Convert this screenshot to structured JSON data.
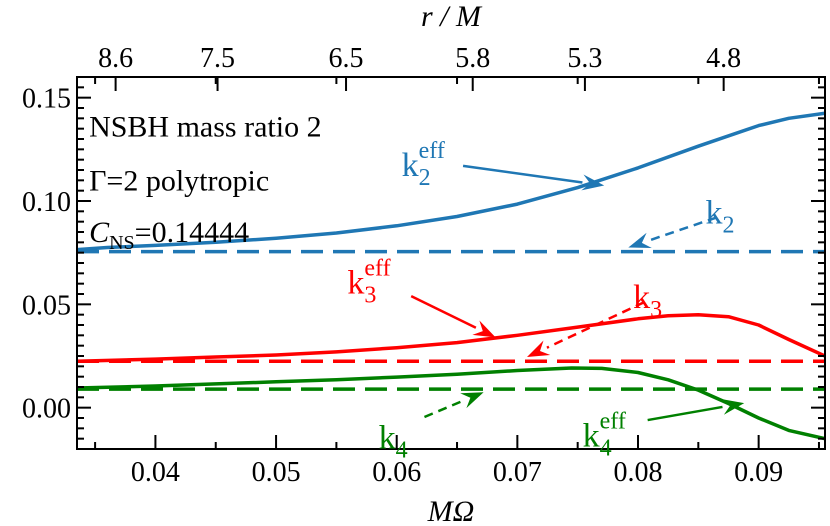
{
  "chart_data": {
    "type": "line",
    "xlabel": "MΩ",
    "x2label": "r / M",
    "xlim": [
      0.0335,
      0.0955
    ],
    "ylim": [
      -0.02,
      0.16
    ],
    "x_ticks": [
      "0.04",
      "0.05",
      "0.06",
      "0.07",
      "0.08",
      "0.09"
    ],
    "y_ticks": [
      "0.00",
      "0.05",
      "0.10",
      "0.15"
    ],
    "x2_ticks": [
      {
        "label": "8.6",
        "omega": 0.0367
      },
      {
        "label": "7.5",
        "omega": 0.04515
      },
      {
        "label": "6.5",
        "omega": 0.0558
      },
      {
        "label": "5.8",
        "omega": 0.0663
      },
      {
        "label": "5.3",
        "omega": 0.0756
      },
      {
        "label": "4.8",
        "omega": 0.0871
      }
    ],
    "legend": [
      {
        "line": "NSBH mass ratio 2"
      },
      {
        "line": "Γ=2 polytropic"
      },
      {
        "symbol": "C",
        "sub": "NS",
        "rest": "=0.14444"
      }
    ],
    "colors": {
      "k2": "#1f77b4",
      "k3": "#ff0000",
      "k4": "#008000"
    },
    "series": [
      {
        "name": "k2_eff",
        "color": "#1f77b4",
        "style": "solid",
        "x": [
          0.0335,
          0.036,
          0.04,
          0.045,
          0.05,
          0.055,
          0.06,
          0.065,
          0.07,
          0.075,
          0.08,
          0.085,
          0.09,
          0.0925,
          0.0955
        ],
        "y": [
          0.0765,
          0.0775,
          0.0785,
          0.08,
          0.082,
          0.0845,
          0.088,
          0.0925,
          0.0985,
          0.1065,
          0.116,
          0.1265,
          0.1365,
          0.14,
          0.1425
        ]
      },
      {
        "name": "k2",
        "color": "#1f77b4",
        "style": "dashed",
        "x": [
          0.0335,
          0.0955
        ],
        "y": [
          0.0755,
          0.0755
        ]
      },
      {
        "name": "k3_eff",
        "color": "#ff0000",
        "style": "solid",
        "x": [
          0.0335,
          0.04,
          0.045,
          0.05,
          0.055,
          0.06,
          0.065,
          0.07,
          0.075,
          0.08,
          0.0825,
          0.085,
          0.0875,
          0.09,
          0.0925,
          0.0955
        ],
        "y": [
          0.0225,
          0.0235,
          0.0245,
          0.0255,
          0.027,
          0.029,
          0.0315,
          0.035,
          0.039,
          0.043,
          0.0445,
          0.045,
          0.044,
          0.04,
          0.033,
          0.025
        ]
      },
      {
        "name": "k3",
        "color": "#ff0000",
        "style": "dashed",
        "x": [
          0.0335,
          0.0955
        ],
        "y": [
          0.0225,
          0.0225
        ]
      },
      {
        "name": "k4_eff",
        "color": "#008000",
        "style": "solid",
        "x": [
          0.0335,
          0.04,
          0.045,
          0.05,
          0.055,
          0.06,
          0.065,
          0.07,
          0.0745,
          0.077,
          0.08,
          0.0825,
          0.085,
          0.0875,
          0.09,
          0.0925,
          0.0955
        ],
        "y": [
          0.0095,
          0.0105,
          0.0115,
          0.0125,
          0.0135,
          0.0148,
          0.0162,
          0.018,
          0.0192,
          0.019,
          0.017,
          0.0135,
          0.0085,
          0.002,
          -0.005,
          -0.011,
          -0.015
        ]
      },
      {
        "name": "k4",
        "color": "#008000",
        "style": "dashed",
        "x": [
          0.0335,
          0.0955
        ],
        "y": [
          0.009,
          0.009
        ]
      }
    ],
    "annotations": [
      {
        "id": "k2-eff",
        "base": "k",
        "sub": "2",
        "sup": "eff",
        "color": "#1f77b4",
        "tx": 0.0622,
        "ty": 0.118,
        "ax": 0.0655,
        "ay": 0.117,
        "hx": 0.0772,
        "hy": 0.1075,
        "style": "solid"
      },
      {
        "id": "k2",
        "base": "k",
        "sub": "2",
        "color": "#1f77b4",
        "tx": 0.0868,
        "ty": 0.095,
        "ax": 0.0865,
        "ay": 0.092,
        "hx": 0.0792,
        "hy": 0.0775,
        "style": "dashed"
      },
      {
        "id": "k3-eff",
        "base": "k",
        "sub": "3",
        "sup": "eff",
        "color": "#ff0000",
        "tx": 0.0577,
        "ty": 0.061,
        "ax": 0.0612,
        "ay": 0.054,
        "hx": 0.0682,
        "hy": 0.034,
        "style": "solid"
      },
      {
        "id": "k3",
        "base": "k",
        "sub": "3",
        "color": "#ff0000",
        "tx": 0.0808,
        "ty": 0.054,
        "ax": 0.0805,
        "ay": 0.051,
        "hx": 0.0708,
        "hy": 0.0245,
        "style": "dashed"
      },
      {
        "id": "k4",
        "base": "k",
        "sub": "4",
        "color": "#008000",
        "tx": 0.0597,
        "ty": -0.014,
        "ax": 0.0623,
        "ay": -0.0045,
        "hx": 0.0672,
        "hy": 0.0075,
        "style": "dashed"
      },
      {
        "id": "k4-eff",
        "base": "k",
        "sub": "4",
        "sup": "eff",
        "color": "#008000",
        "tx": 0.0772,
        "ty": -0.013,
        "ax": 0.0808,
        "ay": -0.006,
        "hx": 0.0888,
        "hy": 0.0022,
        "style": "solid"
      }
    ]
  }
}
